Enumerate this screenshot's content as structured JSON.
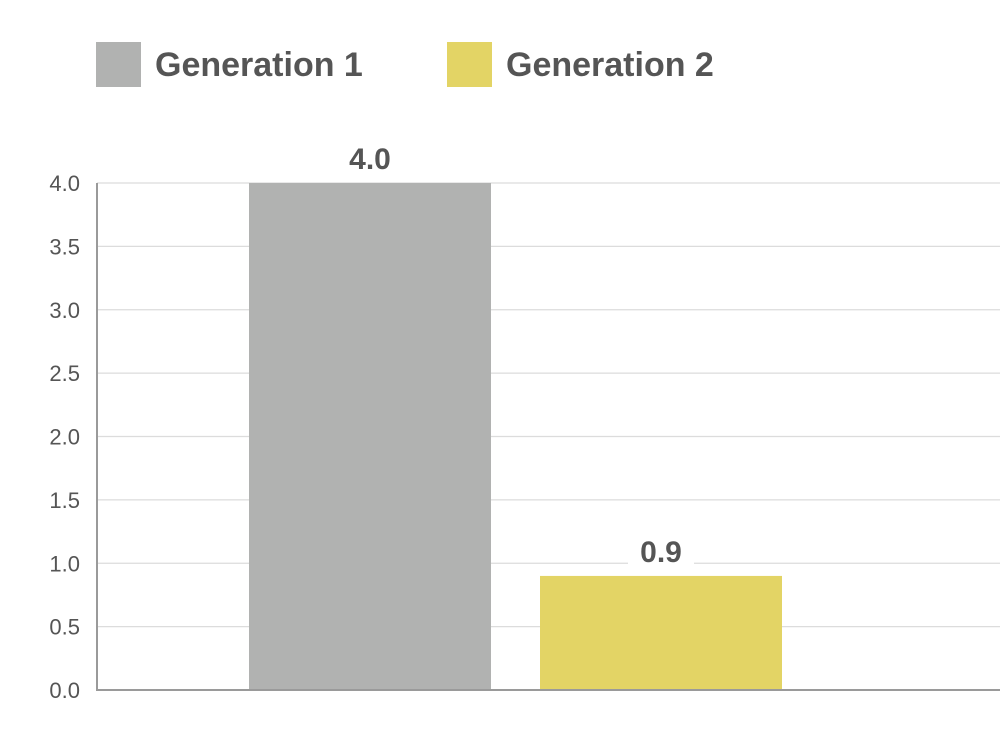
{
  "chart_data": {
    "type": "bar",
    "categories": [
      "Generation 1",
      "Generation 2"
    ],
    "values": [
      4.0,
      0.9
    ],
    "value_labels": [
      "4.0",
      "0.9"
    ],
    "colors": [
      "#b1b2b1",
      "#e3d465"
    ],
    "legend": [
      {
        "label": "Generation 1",
        "color": "#b1b2b1"
      },
      {
        "label": "Generation 2",
        "color": "#e3d465"
      }
    ],
    "legend_position": "top-left",
    "title": "",
    "xlabel": "",
    "ylabel": "",
    "ylim": [
      0,
      4.0
    ],
    "yticks": [
      0.0,
      0.5,
      1.0,
      1.5,
      2.0,
      2.5,
      3.0,
      3.5,
      4.0
    ],
    "ytick_labels": [
      "0.0",
      "0.5",
      "1.0",
      "1.5",
      "2.0",
      "2.5",
      "3.0",
      "3.5",
      "4.0"
    ],
    "grid": true
  }
}
